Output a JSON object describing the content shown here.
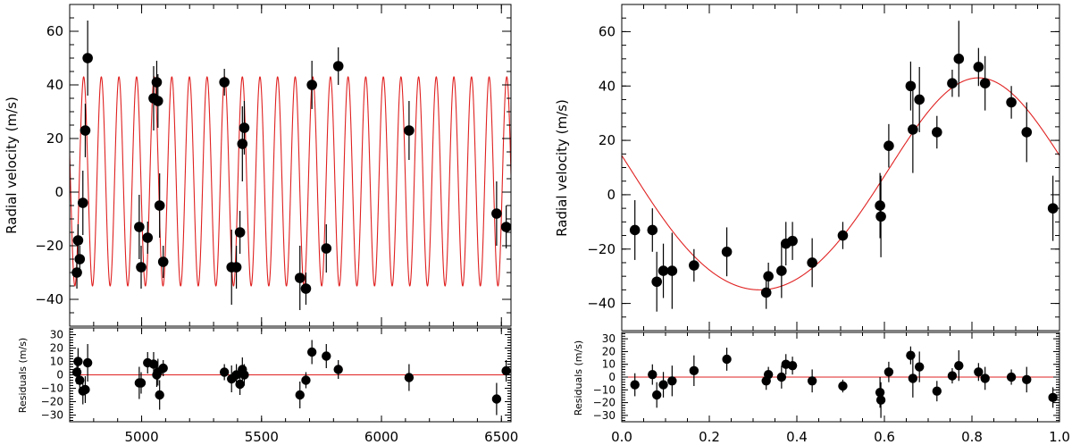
{
  "chart_data": [
    {
      "id": "time_rv",
      "type": "scatter",
      "ylabel": "Radial velocity (m/s)",
      "xlim": [
        4700,
        6540
      ],
      "ylim": [
        -50,
        70
      ],
      "xticks": [
        5000,
        5500,
        6000,
        6500
      ],
      "yticks": [
        -40,
        -20,
        0,
        20,
        40,
        60
      ],
      "model": {
        "type": "sine",
        "amplitude": 39,
        "offset": 4,
        "period_days": 73.5,
        "phase_ref": 4740,
        "color": "#e02020"
      },
      "points": [
        {
          "x": 4730,
          "y": -30,
          "err": 6
        },
        {
          "x": 4735,
          "y": -18,
          "err": 6
        },
        {
          "x": 4742,
          "y": -25,
          "err": 5
        },
        {
          "x": 4755,
          "y": -4,
          "err": 12
        },
        {
          "x": 4765,
          "y": 23,
          "err": 10
        },
        {
          "x": 4775,
          "y": 50,
          "err": 14
        },
        {
          "x": 4990,
          "y": -13,
          "err": 12
        },
        {
          "x": 4998,
          "y": -28,
          "err": 8
        },
        {
          "x": 5025,
          "y": -17,
          "err": 6
        },
        {
          "x": 5050,
          "y": 35,
          "err": 12
        },
        {
          "x": 5063,
          "y": 41,
          "err": 8
        },
        {
          "x": 5068,
          "y": 34,
          "err": 10
        },
        {
          "x": 5075,
          "y": -5,
          "err": 12
        },
        {
          "x": 5090,
          "y": -26,
          "err": 6
        },
        {
          "x": 5345,
          "y": 41,
          "err": 5
        },
        {
          "x": 5375,
          "y": -28,
          "err": 14
        },
        {
          "x": 5395,
          "y": -28,
          "err": 8
        },
        {
          "x": 5410,
          "y": -15,
          "err": 8
        },
        {
          "x": 5420,
          "y": 18,
          "err": 14
        },
        {
          "x": 5428,
          "y": 24,
          "err": 10
        },
        {
          "x": 5660,
          "y": -32,
          "err": 12
        },
        {
          "x": 5685,
          "y": -36,
          "err": 6
        },
        {
          "x": 5710,
          "y": 40,
          "err": 9
        },
        {
          "x": 5770,
          "y": -21,
          "err": 9
        },
        {
          "x": 5820,
          "y": 47,
          "err": 7
        },
        {
          "x": 6115,
          "y": 23,
          "err": 11
        },
        {
          "x": 6480,
          "y": -8,
          "err": 12
        },
        {
          "x": 6520,
          "y": -13,
          "err": 8
        }
      ]
    },
    {
      "id": "time_residuals",
      "type": "scatter",
      "ylabel": "Residuals (m/s)",
      "xlim": [
        4700,
        6540
      ],
      "ylim": [
        -35,
        35
      ],
      "xticks": [
        5000,
        5500,
        6000,
        6500
      ],
      "xtick_labels": [
        "5000",
        "5500",
        "6000",
        "6500"
      ],
      "yticks": [
        -30,
        -20,
        -10,
        0,
        10,
        20,
        30
      ],
      "ytick_labels": [
        "−30",
        "−20",
        "−10",
        "0",
        "10",
        "20",
        "30"
      ],
      "zero_line_color": "#e02020",
      "points": [
        {
          "x": 4730,
          "y": 2,
          "err": 9
        },
        {
          "x": 4735,
          "y": 10,
          "err": 10
        },
        {
          "x": 4742,
          "y": -4,
          "err": 9
        },
        {
          "x": 4755,
          "y": -12,
          "err": 10
        },
        {
          "x": 4765,
          "y": -11,
          "err": 10
        },
        {
          "x": 4775,
          "y": 9,
          "err": 14
        },
        {
          "x": 4990,
          "y": -6,
          "err": 12
        },
        {
          "x": 4998,
          "y": -6,
          "err": 8
        },
        {
          "x": 5025,
          "y": 9,
          "err": 8
        },
        {
          "x": 5050,
          "y": 8,
          "err": 9
        },
        {
          "x": 5063,
          "y": 0,
          "err": 9
        },
        {
          "x": 5068,
          "y": 2,
          "err": 10
        },
        {
          "x": 5075,
          "y": -15,
          "err": 11
        },
        {
          "x": 5090,
          "y": 5,
          "err": 6
        },
        {
          "x": 5345,
          "y": 2,
          "err": 6
        },
        {
          "x": 5375,
          "y": -3,
          "err": 10
        },
        {
          "x": 5395,
          "y": 0,
          "err": 8
        },
        {
          "x": 5410,
          "y": -7,
          "err": 8
        },
        {
          "x": 5420,
          "y": 4,
          "err": 9
        },
        {
          "x": 5428,
          "y": 0,
          "err": 8
        },
        {
          "x": 5660,
          "y": -15,
          "err": 10
        },
        {
          "x": 5685,
          "y": -4,
          "err": 6
        },
        {
          "x": 5710,
          "y": 17,
          "err": 9
        },
        {
          "x": 5770,
          "y": 14,
          "err": 9
        },
        {
          "x": 5820,
          "y": 4,
          "err": 7
        },
        {
          "x": 6115,
          "y": -2,
          "err": 10
        },
        {
          "x": 6480,
          "y": -18,
          "err": 12
        },
        {
          "x": 6520,
          "y": 3,
          "err": 8
        }
      ]
    },
    {
      "id": "phase_rv",
      "type": "scatter",
      "ylabel": "Radial velocity (m/s)",
      "xlim": [
        0.0,
        1.0
      ],
      "ylim": [
        -50,
        70
      ],
      "xticks": [
        0.0,
        0.2,
        0.4,
        0.6,
        0.8,
        1.0
      ],
      "yticks": [
        -40,
        -20,
        0,
        20,
        40,
        60
      ],
      "model": {
        "type": "keplerian",
        "amplitude": 39,
        "offset": 4,
        "peak_phase": 0.815,
        "eccentricity": 0.15,
        "color": "#e02020"
      },
      "points": [
        {
          "x": 0.03,
          "y": -13,
          "err": 11
        },
        {
          "x": 0.07,
          "y": -13,
          "err": 8
        },
        {
          "x": 0.08,
          "y": -32,
          "err": 11
        },
        {
          "x": 0.095,
          "y": -28,
          "err": 10
        },
        {
          "x": 0.115,
          "y": -28,
          "err": 14
        },
        {
          "x": 0.165,
          "y": -26,
          "err": 6
        },
        {
          "x": 0.24,
          "y": -21,
          "err": 9
        },
        {
          "x": 0.33,
          "y": -36,
          "err": 6
        },
        {
          "x": 0.335,
          "y": -30,
          "err": 5
        },
        {
          "x": 0.365,
          "y": -28,
          "err": 10
        },
        {
          "x": 0.375,
          "y": -18,
          "err": 8
        },
        {
          "x": 0.39,
          "y": -17,
          "err": 7
        },
        {
          "x": 0.435,
          "y": -25,
          "err": 9
        },
        {
          "x": 0.505,
          "y": -15,
          "err": 5
        },
        {
          "x": 0.59,
          "y": -4,
          "err": 12
        },
        {
          "x": 0.592,
          "y": -8,
          "err": 15
        },
        {
          "x": 0.61,
          "y": 18,
          "err": 8
        },
        {
          "x": 0.66,
          "y": 40,
          "err": 9
        },
        {
          "x": 0.665,
          "y": 24,
          "err": 16
        },
        {
          "x": 0.68,
          "y": 35,
          "err": 12
        },
        {
          "x": 0.72,
          "y": 23,
          "err": 6
        },
        {
          "x": 0.755,
          "y": 41,
          "err": 5
        },
        {
          "x": 0.77,
          "y": 50,
          "err": 14
        },
        {
          "x": 0.815,
          "y": 47,
          "err": 7
        },
        {
          "x": 0.83,
          "y": 41,
          "err": 10
        },
        {
          "x": 0.89,
          "y": 34,
          "err": 6
        },
        {
          "x": 0.925,
          "y": 23,
          "err": 11
        },
        {
          "x": 0.985,
          "y": -5,
          "err": 12
        }
      ]
    },
    {
      "id": "phase_residuals",
      "type": "scatter",
      "ylabel": "Residuals (m/s)",
      "xlim": [
        0.0,
        1.0
      ],
      "ylim": [
        -35,
        35
      ],
      "xticks": [
        0.0,
        0.2,
        0.4,
        0.6,
        0.8,
        1.0
      ],
      "xtick_labels": [
        "0.0",
        "0.2",
        "0.4",
        "0.6",
        "0.8",
        "1.0"
      ],
      "yticks": [
        -30,
        -20,
        -10,
        0,
        10,
        20,
        30
      ],
      "ytick_labels": [
        "−30",
        "−20",
        "−10",
        "0",
        "10",
        "20",
        "30"
      ],
      "zero_line_color": "#e02020",
      "points": [
        {
          "x": 0.03,
          "y": -6,
          "err": 9
        },
        {
          "x": 0.07,
          "y": 2,
          "err": 8
        },
        {
          "x": 0.08,
          "y": -14,
          "err": 10
        },
        {
          "x": 0.095,
          "y": -6,
          "err": 10
        },
        {
          "x": 0.115,
          "y": -3,
          "err": 12
        },
        {
          "x": 0.165,
          "y": 5,
          "err": 12
        },
        {
          "x": 0.24,
          "y": 14,
          "err": 9
        },
        {
          "x": 0.33,
          "y": -3,
          "err": 7
        },
        {
          "x": 0.335,
          "y": 2,
          "err": 6
        },
        {
          "x": 0.365,
          "y": 0,
          "err": 9
        },
        {
          "x": 0.375,
          "y": 10,
          "err": 8
        },
        {
          "x": 0.39,
          "y": 9,
          "err": 7
        },
        {
          "x": 0.435,
          "y": -3,
          "err": 9
        },
        {
          "x": 0.505,
          "y": -7,
          "err": 5
        },
        {
          "x": 0.59,
          "y": -12,
          "err": 12
        },
        {
          "x": 0.592,
          "y": -18,
          "err": 14
        },
        {
          "x": 0.61,
          "y": 4,
          "err": 8
        },
        {
          "x": 0.66,
          "y": 17,
          "err": 7
        },
        {
          "x": 0.665,
          "y": -1,
          "err": 15
        },
        {
          "x": 0.68,
          "y": 8,
          "err": 12
        },
        {
          "x": 0.72,
          "y": -11,
          "err": 8
        },
        {
          "x": 0.755,
          "y": 1,
          "err": 6
        },
        {
          "x": 0.77,
          "y": 9,
          "err": 12
        },
        {
          "x": 0.815,
          "y": 4,
          "err": 7
        },
        {
          "x": 0.83,
          "y": -1,
          "err": 9
        },
        {
          "x": 0.89,
          "y": 0,
          "err": 6
        },
        {
          "x": 0.925,
          "y": -2,
          "err": 10
        },
        {
          "x": 0.985,
          "y": -16,
          "err": 8
        }
      ]
    }
  ]
}
